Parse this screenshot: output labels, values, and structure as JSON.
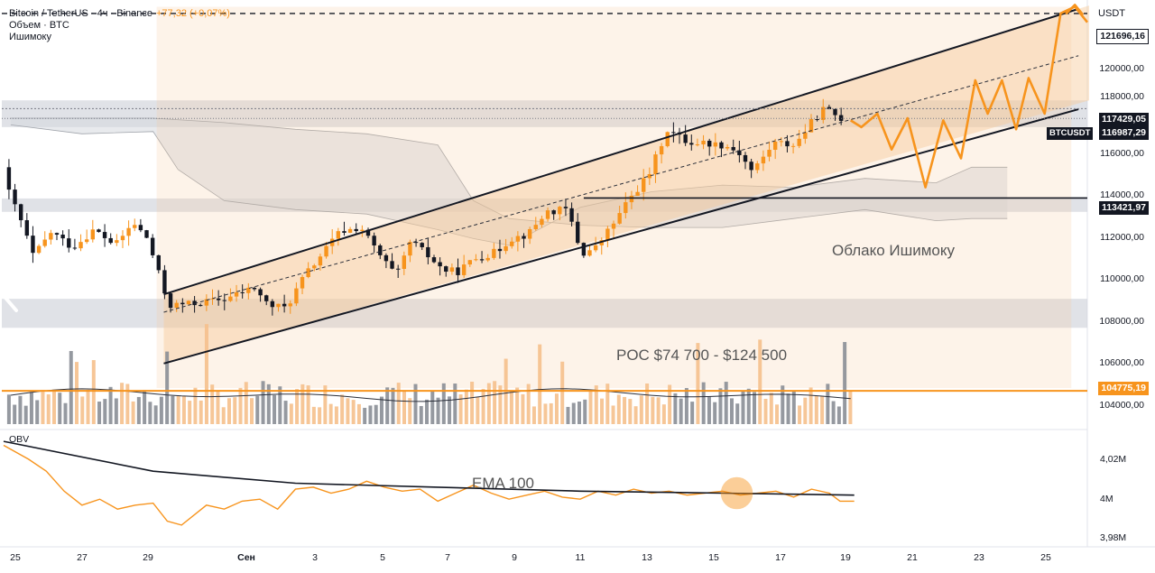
{
  "header": {
    "symbol_title": "Bitcoin / TetherUS · 4ч · Binance",
    "change": "+77,32 (+0,07%)",
    "volume_label": "Объем · BTC",
    "ichimoku_label": "Ишимоку",
    "currency": "USDT"
  },
  "sub_pane": {
    "obv_label": "OBV",
    "ema_label": "EMA 100",
    "y_ticks": [
      "4,02M",
      "4M",
      "3,98M"
    ]
  },
  "annotations": {
    "cloud_label": "Облако Ишимоку",
    "poc_label": "POC $74 700 - $124 500"
  },
  "price_tags": {
    "target": "121696,16",
    "high": "117429,05",
    "current": "116987,29",
    "support": "113421,97",
    "poc": "104775,19",
    "symbol": "BTCUSDT"
  },
  "colors": {
    "up": "#f7941d",
    "down": "#131722",
    "channel": "#f7c99a",
    "cloud": "#d6d9de",
    "poc_line": "#f7941d",
    "obv": "#f7941d"
  },
  "chart_data": {
    "type": "candlestick",
    "title": "Bitcoin / TetherUS · 4ч · Binance",
    "ylabel": "USDT",
    "ylim": [
      103200,
      122300
    ],
    "y_ticks": [
      104000,
      106000,
      108000,
      110000,
      112000,
      114000,
      116000,
      118000,
      120000
    ],
    "x_ticks": [
      "25",
      "27",
      "29",
      "Сен",
      "3",
      "5",
      "7",
      "9",
      "11",
      "13",
      "15",
      "17",
      "19",
      "21",
      "23",
      "25"
    ],
    "x_tick_days": [
      0,
      2,
      4,
      6,
      8,
      10,
      12,
      14,
      16,
      18,
      20,
      22,
      24,
      26,
      28,
      30
    ],
    "day_span": [
      -0.2,
      30.3
    ],
    "last_price": 116987.29,
    "level_target": 121696.16,
    "level_high": 117429.05,
    "level_support": 113421.97,
    "poc_level": 104775.19,
    "gray_zones": [
      [
        116600,
        117800
      ],
      [
        112800,
        113400
      ],
      [
        107600,
        108900
      ]
    ],
    "channel": {
      "start_day": 4.3,
      "end_day": 28.5,
      "upper": [
        109100,
        121900
      ],
      "lower": [
        106000,
        117400
      ],
      "mid": [
        108300,
        119800
      ]
    },
    "projection": {
      "days": [
        23.6,
        23.9,
        24.35,
        24.75,
        25.2,
        25.7,
        26.2,
        26.7,
        27.1,
        27.45,
        27.85,
        28.25,
        28.6,
        29.05,
        29.5,
        29.9,
        30.25
      ],
      "prices": [
        116900,
        116600,
        117200,
        115600,
        117000,
        113900,
        116900,
        115200,
        118700,
        117200,
        118700,
        116500,
        118800,
        117200,
        121700,
        122000,
        121300
      ]
    },
    "support_line_start_day": 16.1,
    "series": [
      {
        "name": "Ichimoku span 1",
        "x": [
          0,
          2,
          4,
          4.7,
          6,
          8,
          10,
          12,
          13,
          14,
          16,
          18,
          20,
          22,
          24,
          26,
          27,
          28
        ],
        "values": [
          116700,
          116300,
          116400,
          114700,
          113300,
          112900,
          112700,
          112000,
          111600,
          111300,
          113000,
          113700,
          114000,
          113900,
          114300,
          114100,
          114800,
          114800
        ]
      },
      {
        "name": "Ichimoku span 2",
        "x": [
          0,
          2,
          4,
          6,
          8,
          10,
          12,
          13,
          14,
          16,
          18,
          20,
          22,
          24,
          26,
          27,
          28
        ],
        "values": [
          117000,
          117000,
          117000,
          116800,
          116500,
          116300,
          115800,
          113300,
          112500,
          112200,
          112100,
          112100,
          112500,
          112900,
          112400,
          112500,
          112500
        ]
      },
      {
        "name": "Price path",
        "x": [
          -0.2,
          0.4,
          0.8,
          1.3,
          1.9,
          2.5,
          3.1,
          3.6,
          4.0,
          4.3,
          4.6,
          5.4,
          6.2,
          7.0,
          7.4,
          7.9,
          8.4,
          8.9,
          9.4,
          10.0,
          10.5,
          11.0,
          11.4,
          11.9,
          12.3,
          12.7,
          13.2,
          13.8,
          14.2,
          14.7,
          15.2,
          15.8,
          16.2,
          16.6,
          17.1,
          17.6,
          18.1,
          18.6,
          19.2,
          19.6,
          20.2,
          20.6,
          21.0,
          21.6,
          22.2,
          22.6,
          23.0,
          23.5
        ],
        "values": [
          114800,
          112600,
          110800,
          111900,
          111200,
          112000,
          111300,
          112300,
          111600,
          110100,
          108600,
          108700,
          108900,
          109400,
          108600,
          108500,
          109900,
          110900,
          111900,
          112100,
          110900,
          109900,
          111500,
          110800,
          110200,
          110100,
          110700,
          111000,
          111600,
          111800,
          112800,
          112900,
          110900,
          111200,
          112300,
          113500,
          114500,
          116500,
          115900,
          115900,
          115800,
          115500,
          114600,
          115900,
          115800,
          116700,
          117400,
          117000
        ]
      },
      {
        "name": "OBV",
        "x": [
          -0.2,
          0.5,
          1.0,
          1.5,
          2.0,
          2.5,
          3.0,
          3.5,
          4.0,
          4.4,
          4.8,
          5.5,
          6.0,
          6.5,
          7.0,
          7.5,
          8.0,
          8.5,
          9.0,
          9.5,
          10.0,
          10.5,
          11.0,
          11.5,
          12.0,
          12.5,
          13.0,
          13.5,
          14.0,
          14.5,
          15.0,
          15.5,
          16.0,
          16.5,
          17.0,
          17.5,
          18.0,
          18.5,
          19.0,
          19.5,
          20.0,
          20.5,
          21.0,
          21.5,
          22.0,
          22.5,
          23.0,
          23.3,
          23.7
        ],
        "values": [
          4.025,
          4.018,
          4.012,
          4.002,
          3.995,
          3.998,
          3.993,
          3.995,
          3.996,
          3.987,
          3.985,
          3.995,
          3.993,
          3.997,
          3.998,
          3.993,
          4.003,
          4.004,
          4.001,
          4.003,
          4.007,
          4.004,
          4.002,
          4.003,
          3.997,
          4.001,
          4.005,
          4.001,
          3.998,
          4.0,
          4.002,
          3.999,
          3.998,
          4.002,
          4.0,
          4.003,
          4.001,
          4.002,
          4.0,
          4.001,
          4.002,
          4.0,
          4.001,
          4.002,
          3.999,
          4.003,
          4.001,
          3.997,
          3.997
        ]
      },
      {
        "name": "EMA 100",
        "x": [
          -0.2,
          4.0,
          8.0,
          12.0,
          16.0,
          20.0,
          23.7
        ],
        "values": [
          4.027,
          4.012,
          4.006,
          4.004,
          4.002,
          4.001,
          4.0
        ]
      }
    ],
    "obv_ylim": [
      3.975,
      4.032
    ],
    "volume_max": 100,
    "ichimoku_cloud_label": "Облако Ишимоку",
    "poc_annotation": "POC $74 700 - $124 500"
  }
}
